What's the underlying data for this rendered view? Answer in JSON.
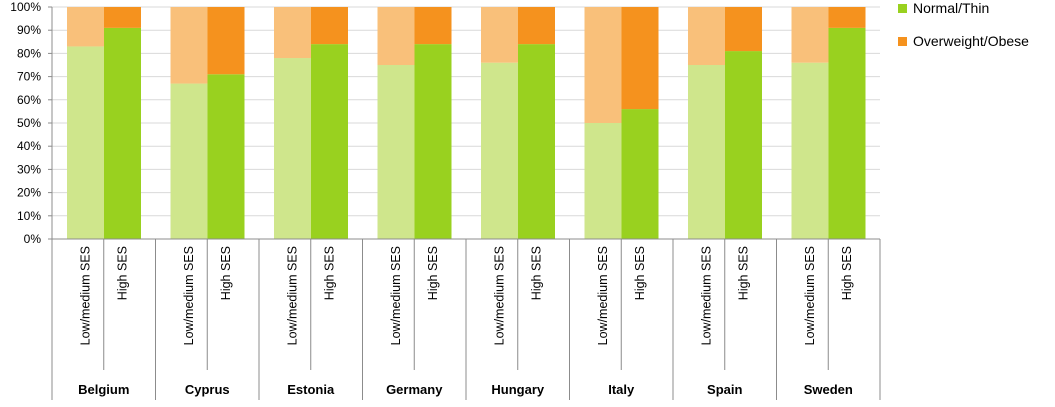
{
  "chart_data": {
    "type": "bar",
    "stacked": true,
    "percent": true,
    "title": "",
    "xlabel": "",
    "ylabel": "",
    "ylim": [
      0,
      100
    ],
    "y_ticks": [
      "0%",
      "10%",
      "20%",
      "30%",
      "40%",
      "50%",
      "60%",
      "70%",
      "80%",
      "90%",
      "100%"
    ],
    "grid": true,
    "legend_position": "top-right",
    "groups": [
      "Belgium",
      "Cyprus",
      "Estonia",
      "Germany",
      "Hungary",
      "Italy",
      "Spain",
      "Sweden"
    ],
    "categories": [
      "Low/medium SES",
      "High SES"
    ],
    "series": [
      {
        "name": "Normal/Thin",
        "color_light": "#cfe68c",
        "color_dark": "#99d11f",
        "values": [
          [
            83,
            91
          ],
          [
            67,
            71
          ],
          [
            78,
            84
          ],
          [
            75,
            84
          ],
          [
            76,
            84
          ],
          [
            50,
            56
          ],
          [
            75,
            81
          ],
          [
            76,
            91
          ]
        ]
      },
      {
        "name": "Overweight/Obese",
        "color_light": "#f9c07a",
        "color_dark": "#f5921e",
        "values": [
          [
            17,
            9
          ],
          [
            33,
            29
          ],
          [
            22,
            16
          ],
          [
            25,
            16
          ],
          [
            24,
            16
          ],
          [
            50,
            44
          ],
          [
            25,
            19
          ],
          [
            24,
            9
          ]
        ]
      }
    ]
  }
}
